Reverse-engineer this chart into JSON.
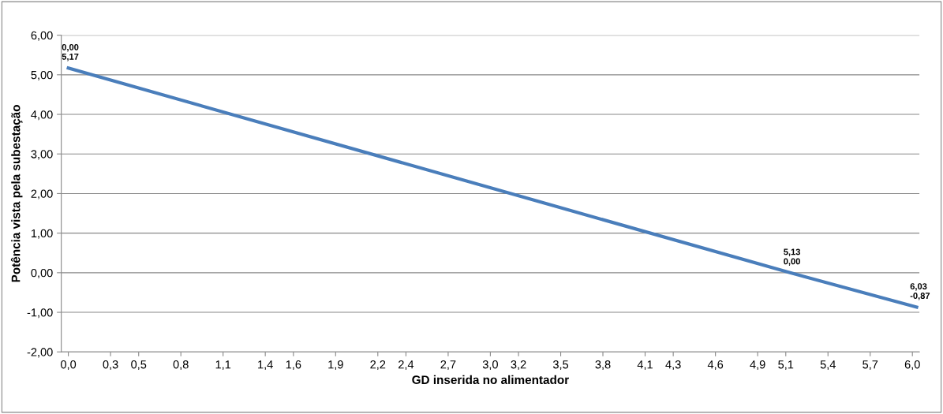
{
  "chart_data": {
    "type": "line",
    "xlabel": "GD inserida no alimentador",
    "ylabel": "Potência vista pela subestação",
    "x": [
      0,
      5.13,
      6.03
    ],
    "series": [
      {
        "color": "#4a7ebb",
        "values": [
          5.17,
          0.0,
          -0.87
        ]
      }
    ],
    "xlim": [
      -0.05,
      6.05
    ],
    "xticks": [
      {
        "value": 0,
        "label": "0,0"
      },
      {
        "value": 0.3,
        "label": "0,3"
      },
      {
        "value": 0.5,
        "label": "0,5"
      },
      {
        "value": 0.8,
        "label": "0,8"
      },
      {
        "value": 1.1,
        "label": "1,1"
      },
      {
        "value": 1.4,
        "label": "1,4"
      },
      {
        "value": 1.6,
        "label": "1,6"
      },
      {
        "value": 1.9,
        "label": "1,9"
      },
      {
        "value": 2.2,
        "label": "2,2"
      },
      {
        "value": 2.4,
        "label": "2,4"
      },
      {
        "value": 2.7,
        "label": "2,7"
      },
      {
        "value": 3.0,
        "label": "3,0"
      },
      {
        "value": 3.2,
        "label": "3,2"
      },
      {
        "value": 3.5,
        "label": "3,5"
      },
      {
        "value": 3.8,
        "label": "3,8"
      },
      {
        "value": 4.1,
        "label": "4,1"
      },
      {
        "value": 4.3,
        "label": "4,3"
      },
      {
        "value": 4.6,
        "label": "4,6"
      },
      {
        "value": 4.9,
        "label": "4,9"
      },
      {
        "value": 5.1,
        "label": "5,1"
      },
      {
        "value": 5.4,
        "label": "5,4"
      },
      {
        "value": 5.7,
        "label": "5,7"
      },
      {
        "value": 6.0,
        "label": "6,0"
      }
    ],
    "ylim": [
      -2,
      6
    ],
    "yticks": [
      {
        "value": -2,
        "label": "-2,00"
      },
      {
        "value": -1,
        "label": "-1,00"
      },
      {
        "value": 0,
        "label": "0,00"
      },
      {
        "value": 1,
        "label": "1,00"
      },
      {
        "value": 2,
        "label": "2,00"
      },
      {
        "value": 3,
        "label": "3,00"
      },
      {
        "value": 4,
        "label": "4,00"
      },
      {
        "value": 5,
        "label": "5,00"
      },
      {
        "value": 6,
        "label": "6,00"
      }
    ],
    "grid": "y",
    "marker": "none",
    "line_style": "solid",
    "annotations": [
      {
        "text": "0,00\n5,17",
        "x": 0,
        "y": 5.17
      },
      {
        "text": "5,13\n0,00",
        "x": 5.13,
        "y": 0.0
      },
      {
        "text": "6,03\n-0,87",
        "x": 6.03,
        "y": -0.87
      }
    ]
  }
}
